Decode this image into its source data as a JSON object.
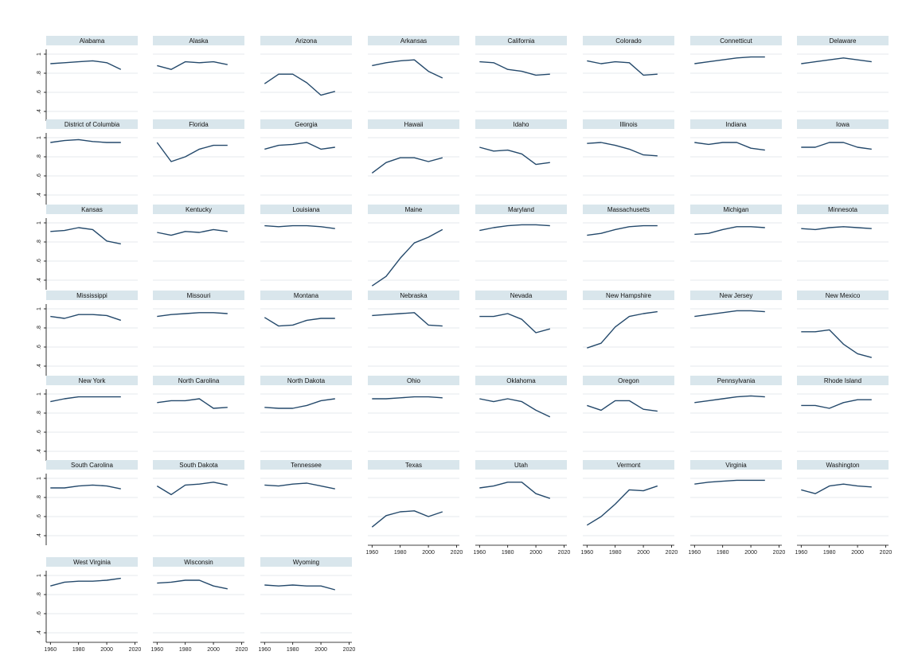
{
  "colors": {
    "line": "#24496b",
    "strip": "#d9e6ec",
    "grid": "#e6eaee",
    "axis": "#000000"
  },
  "chart_data": {
    "type": "line",
    "layout": "small-multiples",
    "title": "",
    "xlabel": "",
    "ylabel": "",
    "x": [
      1960,
      1970,
      1980,
      1990,
      2000,
      2010
    ],
    "xlim": [
      1957,
      2022
    ],
    "ylim": [
      0.3,
      1.05
    ],
    "x_ticks": [
      1960,
      1980,
      2000,
      2020
    ],
    "x_tick_labels": [
      "1960",
      "1980",
      "2000",
      "2020"
    ],
    "y_ticks": [
      1.0,
      0.8,
      0.6,
      0.4
    ],
    "y_tick_labels": [
      "1",
      ".8",
      ".6",
      ".4"
    ],
    "grid": true,
    "panels": [
      {
        "name": "Alabama",
        "values": [
          0.9,
          0.91,
          0.92,
          0.93,
          0.91,
          0.84
        ]
      },
      {
        "name": "Alaska",
        "values": [
          0.88,
          0.84,
          0.92,
          0.91,
          0.92,
          0.89
        ]
      },
      {
        "name": "Arizona",
        "values": [
          0.69,
          0.79,
          0.79,
          0.7,
          0.57,
          0.61
        ]
      },
      {
        "name": "Arkansas",
        "values": [
          0.88,
          0.91,
          0.93,
          0.94,
          0.82,
          0.75
        ]
      },
      {
        "name": "California",
        "values": [
          0.92,
          0.91,
          0.84,
          0.82,
          0.78,
          0.79
        ]
      },
      {
        "name": "Colorado",
        "values": [
          0.93,
          0.9,
          0.92,
          0.91,
          0.78,
          0.79
        ]
      },
      {
        "name": "Connetticut",
        "values": [
          0.9,
          0.92,
          0.94,
          0.96,
          0.97,
          0.97
        ]
      },
      {
        "name": "Delaware",
        "values": [
          0.9,
          0.92,
          0.94,
          0.96,
          0.94,
          0.92
        ]
      },
      {
        "name": "District of Columbia",
        "values": [
          0.95,
          0.97,
          0.98,
          0.96,
          0.95,
          0.95
        ]
      },
      {
        "name": "Florida",
        "values": [
          0.95,
          0.75,
          0.8,
          0.88,
          0.92,
          0.92
        ]
      },
      {
        "name": "Georgia",
        "values": [
          0.88,
          0.92,
          0.93,
          0.95,
          0.88,
          0.9
        ]
      },
      {
        "name": "Hawaii",
        "values": [
          0.63,
          0.74,
          0.79,
          0.79,
          0.75,
          0.79
        ]
      },
      {
        "name": "Idaho",
        "values": [
          0.9,
          0.86,
          0.87,
          0.83,
          0.72,
          0.74
        ]
      },
      {
        "name": "Illinois",
        "values": [
          0.94,
          0.95,
          0.92,
          0.88,
          0.82,
          0.81
        ]
      },
      {
        "name": "Indiana",
        "values": [
          0.95,
          0.93,
          0.95,
          0.95,
          0.89,
          0.87
        ]
      },
      {
        "name": "Iowa",
        "values": [
          0.9,
          0.9,
          0.95,
          0.95,
          0.9,
          0.88
        ]
      },
      {
        "name": "Kansas",
        "values": [
          0.91,
          0.92,
          0.95,
          0.93,
          0.81,
          0.78
        ]
      },
      {
        "name": "Kentucky",
        "values": [
          0.9,
          0.87,
          0.91,
          0.9,
          0.93,
          0.91
        ]
      },
      {
        "name": "Louisiana",
        "values": [
          0.97,
          0.96,
          0.97,
          0.97,
          0.96,
          0.94
        ]
      },
      {
        "name": "Maine",
        "values": [
          0.34,
          0.44,
          0.63,
          0.79,
          0.85,
          0.93
        ]
      },
      {
        "name": "Maryland",
        "values": [
          0.92,
          0.95,
          0.97,
          0.98,
          0.98,
          0.97
        ]
      },
      {
        "name": "Massachusetts",
        "values": [
          0.87,
          0.89,
          0.93,
          0.96,
          0.97,
          0.97
        ]
      },
      {
        "name": "Michigan",
        "values": [
          0.88,
          0.89,
          0.93,
          0.96,
          0.96,
          0.95
        ]
      },
      {
        "name": "Minnesota",
        "values": [
          0.94,
          0.93,
          0.95,
          0.96,
          0.95,
          0.94
        ]
      },
      {
        "name": "Mississippi",
        "values": [
          0.92,
          0.9,
          0.94,
          0.94,
          0.93,
          0.88
        ]
      },
      {
        "name": "Missouri",
        "values": [
          0.92,
          0.94,
          0.95,
          0.96,
          0.96,
          0.95
        ]
      },
      {
        "name": "Montana",
        "values": [
          0.91,
          0.82,
          0.83,
          0.88,
          0.9,
          0.9
        ]
      },
      {
        "name": "Nebraska",
        "values": [
          0.93,
          0.94,
          0.95,
          0.96,
          0.83,
          0.82
        ]
      },
      {
        "name": "Nevada",
        "values": [
          0.92,
          0.92,
          0.95,
          0.89,
          0.75,
          0.79
        ]
      },
      {
        "name": "New Hampshire",
        "values": [
          0.59,
          0.64,
          0.81,
          0.92,
          0.95,
          0.97
        ]
      },
      {
        "name": "New Jersey",
        "values": [
          0.92,
          0.94,
          0.96,
          0.98,
          0.98,
          0.97
        ]
      },
      {
        "name": "New Mexico",
        "values": [
          0.76,
          0.76,
          0.78,
          0.63,
          0.53,
          0.49
        ]
      },
      {
        "name": "New York",
        "values": [
          0.92,
          0.95,
          0.97,
          0.97,
          0.97,
          0.97
        ]
      },
      {
        "name": "North Carolina",
        "values": [
          0.91,
          0.93,
          0.93,
          0.95,
          0.85,
          0.86
        ]
      },
      {
        "name": "North Dakota",
        "values": [
          0.86,
          0.85,
          0.85,
          0.88,
          0.93,
          0.95
        ]
      },
      {
        "name": "Ohio",
        "values": [
          0.95,
          0.95,
          0.96,
          0.97,
          0.97,
          0.96
        ]
      },
      {
        "name": "Oklahoma",
        "values": [
          0.95,
          0.92,
          0.95,
          0.92,
          0.83,
          0.76
        ]
      },
      {
        "name": "Oregon",
        "values": [
          0.88,
          0.83,
          0.93,
          0.93,
          0.84,
          0.82
        ]
      },
      {
        "name": "Pennsylvania",
        "values": [
          0.91,
          0.93,
          0.95,
          0.97,
          0.98,
          0.97
        ]
      },
      {
        "name": "Rhode Island",
        "values": [
          0.88,
          0.88,
          0.85,
          0.91,
          0.94,
          0.94
        ]
      },
      {
        "name": "South Carolina",
        "values": [
          0.9,
          0.9,
          0.92,
          0.93,
          0.92,
          0.89
        ]
      },
      {
        "name": "South Dakota",
        "values": [
          0.92,
          0.83,
          0.93,
          0.94,
          0.96,
          0.93
        ]
      },
      {
        "name": "Tennessee",
        "values": [
          0.93,
          0.92,
          0.94,
          0.95,
          0.92,
          0.89
        ]
      },
      {
        "name": "Texas",
        "values": [
          0.49,
          0.61,
          0.65,
          0.66,
          0.6,
          0.65
        ]
      },
      {
        "name": "Utah",
        "values": [
          0.9,
          0.92,
          0.96,
          0.96,
          0.84,
          0.79
        ]
      },
      {
        "name": "Vermont",
        "values": [
          0.51,
          0.6,
          0.73,
          0.88,
          0.87,
          0.92
        ]
      },
      {
        "name": "Virginia",
        "values": [
          0.94,
          0.96,
          0.97,
          0.98,
          0.98,
          0.98
        ]
      },
      {
        "name": "Washington",
        "values": [
          0.88,
          0.84,
          0.92,
          0.94,
          0.92,
          0.91
        ]
      },
      {
        "name": "West Virginia",
        "values": [
          0.89,
          0.93,
          0.94,
          0.94,
          0.95,
          0.97
        ]
      },
      {
        "name": "Wisconsin",
        "values": [
          0.92,
          0.93,
          0.95,
          0.95,
          0.89,
          0.86
        ]
      },
      {
        "name": "Wyoming",
        "values": [
          0.9,
          0.89,
          0.9,
          0.89,
          0.89,
          0.85
        ]
      }
    ]
  }
}
